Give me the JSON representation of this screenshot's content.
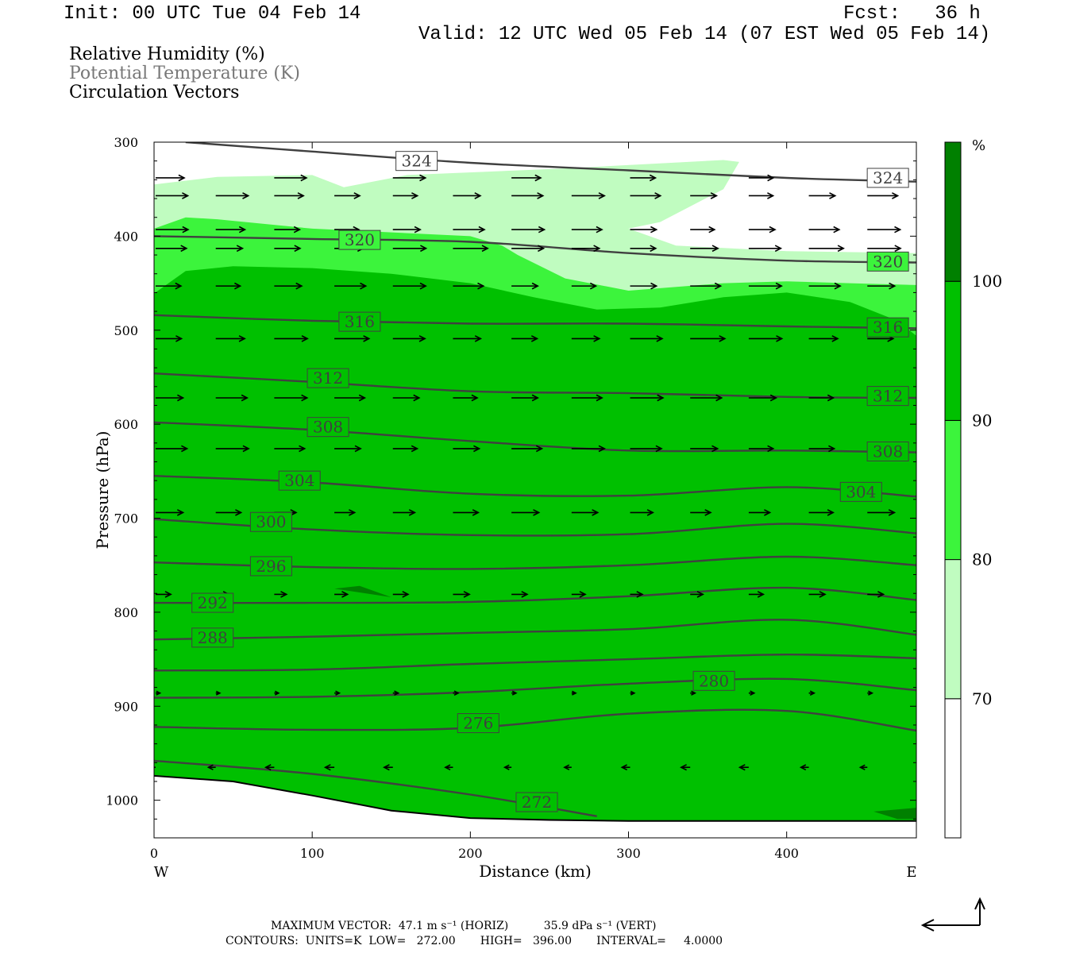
{
  "header": {
    "init": "Init: 00 UTC Tue 04 Feb 14",
    "fcst": "Fcst:   36 h",
    "valid": "Valid: 12 UTC Wed 05 Feb 14 (07 EST Wed 05 Feb 14)"
  },
  "legend_lines": [
    {
      "text": "Relative Humidity (%)",
      "color": "#000000"
    },
    {
      "text": "Potential Temperature (K)",
      "color": "#777777"
    },
    {
      "text": "Circulation Vectors",
      "color": "#000000"
    }
  ],
  "chart_data": {
    "type": "cross-section",
    "ylabel": "Pressure (hPa)",
    "xlabel": "Distance (km)",
    "x_ticks": [
      0,
      100,
      200,
      300,
      400
    ],
    "x_range": [
      0,
      482
    ],
    "y_ticks": [
      300,
      400,
      500,
      600,
      700,
      800,
      900,
      1000
    ],
    "y_range": [
      300,
      1040
    ],
    "left_end_label": "W",
    "right_end_label": "E",
    "colorbar": {
      "unit": "%",
      "levels": [
        70,
        80,
        90,
        100
      ],
      "colors": [
        "#ffffff",
        "#c0fcc0",
        "#3cf43c",
        "#00c000",
        "#008000"
      ]
    },
    "rh_fill_colors": {
      "band_70_80": "#c0fcc0",
      "band_80_90": "#3cf43c",
      "band_90_100": "#00c000",
      "band_100": "#008000"
    },
    "theta_contours": [
      {
        "level": 324,
        "points": [
          [
            20,
            300
          ],
          [
            100,
            310
          ],
          [
            200,
            322
          ],
          [
            300,
            330
          ],
          [
            400,
            338
          ],
          [
            482,
            342
          ]
        ]
      },
      {
        "level": 320,
        "points": [
          [
            0,
            400
          ],
          [
            100,
            403
          ],
          [
            200,
            406
          ],
          [
            300,
            418
          ],
          [
            400,
            426
          ],
          [
            482,
            428
          ]
        ]
      },
      {
        "level": 316,
        "points": [
          [
            0,
            484
          ],
          [
            100,
            490
          ],
          [
            200,
            493
          ],
          [
            300,
            493
          ],
          [
            400,
            496
          ],
          [
            482,
            498
          ]
        ]
      },
      {
        "level": 312,
        "points": [
          [
            0,
            546
          ],
          [
            100,
            555
          ],
          [
            200,
            565
          ],
          [
            300,
            567
          ],
          [
            400,
            571
          ],
          [
            482,
            572
          ]
        ]
      },
      {
        "level": 308,
        "points": [
          [
            0,
            598
          ],
          [
            100,
            606
          ],
          [
            200,
            618
          ],
          [
            300,
            628
          ],
          [
            400,
            628
          ],
          [
            482,
            630
          ]
        ]
      },
      {
        "level": 304,
        "points": [
          [
            0,
            655
          ],
          [
            100,
            662
          ],
          [
            200,
            674
          ],
          [
            300,
            676
          ],
          [
            400,
            667
          ],
          [
            482,
            677
          ]
        ]
      },
      {
        "level": 300,
        "points": [
          [
            0,
            701
          ],
          [
            100,
            712
          ],
          [
            200,
            718
          ],
          [
            300,
            717
          ],
          [
            400,
            706
          ],
          [
            482,
            716
          ]
        ]
      },
      {
        "level": 296,
        "points": [
          [
            0,
            747
          ],
          [
            100,
            752
          ],
          [
            200,
            754
          ],
          [
            300,
            750
          ],
          [
            400,
            741
          ],
          [
            482,
            750
          ]
        ]
      },
      {
        "level": 292,
        "points": [
          [
            0,
            790
          ],
          [
            100,
            790
          ],
          [
            200,
            789
          ],
          [
            300,
            783
          ],
          [
            400,
            774
          ],
          [
            482,
            787
          ]
        ]
      },
      {
        "level": 288,
        "points": [
          [
            0,
            829
          ],
          [
            100,
            826
          ],
          [
            200,
            822
          ],
          [
            300,
            818
          ],
          [
            400,
            808
          ],
          [
            482,
            824
          ]
        ]
      },
      {
        "level": 284,
        "points": [
          [
            0,
            862
          ],
          [
            100,
            861
          ],
          [
            200,
            855
          ],
          [
            300,
            850
          ],
          [
            400,
            845
          ],
          [
            482,
            849
          ]
        ]
      },
      {
        "level": 280,
        "points": [
          [
            0,
            891
          ],
          [
            100,
            890
          ],
          [
            200,
            885
          ],
          [
            300,
            876
          ],
          [
            400,
            871
          ],
          [
            482,
            883
          ]
        ]
      },
      {
        "level": 276,
        "points": [
          [
            0,
            922
          ],
          [
            100,
            925
          ],
          [
            200,
            923
          ],
          [
            300,
            908
          ],
          [
            400,
            905
          ],
          [
            482,
            926
          ]
        ]
      },
      {
        "level": 272,
        "points": [
          [
            0,
            958
          ],
          [
            100,
            972
          ],
          [
            200,
            994
          ],
          [
            280,
            1017
          ]
        ]
      }
    ],
    "theta_labels": [
      {
        "text": "324",
        "x": 166,
        "p": 320
      },
      {
        "text": "324",
        "x": 464,
        "p": 338
      },
      {
        "text": "320",
        "x": 130,
        "p": 404
      },
      {
        "text": "320",
        "x": 464,
        "p": 427
      },
      {
        "text": "316",
        "x": 130,
        "p": 491
      },
      {
        "text": "316",
        "x": 464,
        "p": 497
      },
      {
        "text": "312",
        "x": 110,
        "p": 551
      },
      {
        "text": "312",
        "x": 464,
        "p": 570
      },
      {
        "text": "308",
        "x": 110,
        "p": 603
      },
      {
        "text": "308",
        "x": 464,
        "p": 629
      },
      {
        "text": "304",
        "x": 92,
        "p": 660
      },
      {
        "text": "304",
        "x": 447,
        "p": 672
      },
      {
        "text": "300",
        "x": 74,
        "p": 704
      },
      {
        "text": "296",
        "x": 74,
        "p": 751
      },
      {
        "text": "292",
        "x": 37,
        "p": 790
      },
      {
        "text": "288",
        "x": 37,
        "p": 827
      },
      {
        "text": "280",
        "x": 354,
        "p": 873
      },
      {
        "text": "276",
        "x": 205,
        "p": 918
      },
      {
        "text": "272",
        "x": 242,
        "p": 1002
      }
    ],
    "ground_boundary": [
      [
        0,
        974
      ],
      [
        50,
        980
      ],
      [
        100,
        995
      ],
      [
        150,
        1011
      ],
      [
        200,
        1019
      ],
      [
        250,
        1021
      ],
      [
        300,
        1022
      ],
      [
        482,
        1022
      ]
    ],
    "vectors": [
      {
        "p": 338,
        "xs": [
          0,
          75,
          150,
          225,
          300,
          375,
          450
        ],
        "u": 36,
        "w": 0
      },
      {
        "p": 357,
        "xs": [
          0,
          38,
          75,
          113,
          150,
          188,
          225,
          263,
          300,
          338,
          375,
          413,
          450
        ],
        "u": 36,
        "w": 0
      },
      {
        "p": 393,
        "xs": [
          0,
          38,
          75,
          113,
          150,
          188,
          225,
          263,
          300,
          338,
          375,
          413,
          450
        ],
        "u": 36,
        "w": 0
      },
      {
        "p": 413,
        "xs": [
          0,
          38,
          75,
          113,
          150,
          188,
          225,
          263,
          300,
          338,
          375,
          413,
          450
        ],
        "u": 38,
        "w": 0
      },
      {
        "p": 453,
        "xs": [
          0,
          38,
          75,
          113,
          150,
          188,
          225,
          263,
          300,
          338,
          375,
          413,
          450
        ],
        "u": 36,
        "w": 0
      },
      {
        "p": 509,
        "xs": [
          0,
          38,
          75,
          113,
          150,
          188,
          225,
          263,
          300,
          338,
          375,
          413,
          450
        ],
        "u": 38,
        "w": 0
      },
      {
        "p": 572,
        "xs": [
          0,
          38,
          75,
          113,
          150,
          188,
          225,
          263,
          300,
          338,
          375,
          413,
          450
        ],
        "u": 36,
        "w": 0
      },
      {
        "p": 626,
        "xs": [
          0,
          38,
          75,
          113,
          150,
          188,
          225,
          263,
          300,
          338,
          375,
          413,
          450
        ],
        "u": 36,
        "w": 0
      },
      {
        "p": 694,
        "xs": [
          0,
          38,
          75,
          113,
          150,
          188,
          225,
          263,
          300,
          338,
          375,
          413,
          450
        ],
        "u": 30,
        "w": 0
      },
      {
        "p": 781,
        "xs": [
          0,
          38,
          75,
          113,
          150,
          188,
          225,
          263,
          300,
          338,
          375,
          413,
          450
        ],
        "u": 18,
        "w": 0
      },
      {
        "p": 886,
        "xs": [
          0,
          38,
          75,
          113,
          150,
          188,
          225,
          263,
          300,
          338,
          375,
          413,
          450
        ],
        "u": 6,
        "w": 0
      },
      {
        "p": 965,
        "xs": [
          0,
          38,
          75,
          113,
          150,
          188,
          225,
          263,
          300,
          338,
          375,
          413,
          450
        ],
        "u": -10,
        "w": 0
      }
    ]
  },
  "footer": {
    "max_vector": "MAXIMUM VECTOR:  47.1 m s⁻¹ (HORIZ)          35.9 dPa s⁻¹ (VERT)",
    "contours": "CONTOURS:  UNITS=K  LOW=   272.00       HIGH=   396.00       INTERVAL=     4.0000"
  }
}
